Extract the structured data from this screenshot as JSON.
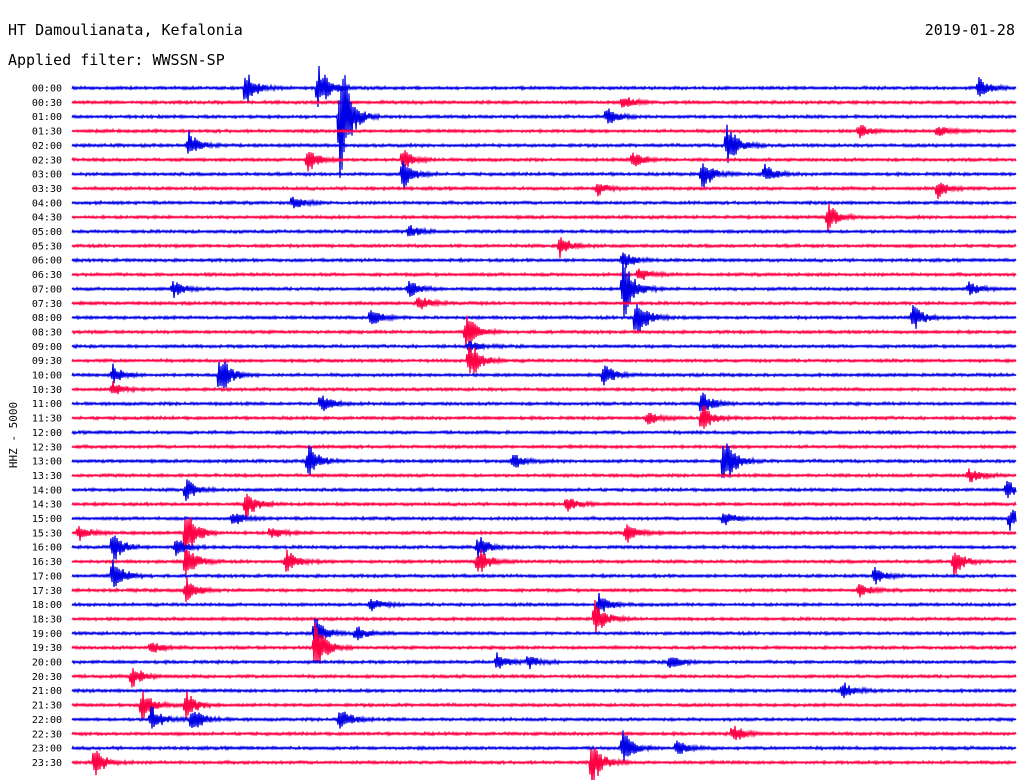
{
  "header": {
    "station": "HT Damoulianata, Kefalonia",
    "filter": "Applied filter: WWSSN-SP",
    "date": "2019-01-28"
  },
  "colors": {
    "trace_even": "#0000e6",
    "trace_odd": "#ff0044",
    "text": "#000000",
    "background": "#ffffff"
  },
  "chart_data": {
    "type": "helicorder",
    "channel_label": "HHZ - 5000",
    "line_interval_minutes": 30,
    "rows": [
      "00:00",
      "00:30",
      "01:00",
      "01:30",
      "02:00",
      "02:30",
      "03:00",
      "03:30",
      "04:00",
      "04:30",
      "05:00",
      "05:30",
      "06:00",
      "06:30",
      "07:00",
      "07:30",
      "08:00",
      "08:30",
      "09:00",
      "09:30",
      "10:00",
      "10:30",
      "11:00",
      "11:30",
      "12:00",
      "12:30",
      "13:00",
      "13:30",
      "14:00",
      "14:30",
      "15:00",
      "15:30",
      "16:00",
      "16:30",
      "17:00",
      "17:30",
      "18:00",
      "18:30",
      "19:00",
      "19:30",
      "20:00",
      "20:30",
      "21:00",
      "21:30",
      "22:00",
      "22:30",
      "23:00",
      "23:30"
    ],
    "events": [
      {
        "row": 0,
        "minute": 5.5,
        "amplitude": 1.6
      },
      {
        "row": 0,
        "minute": 7.8,
        "amplitude": 2.2
      },
      {
        "row": 0,
        "minute": 28.8,
        "amplitude": 0.9
      },
      {
        "row": 1,
        "minute": 17.5,
        "amplitude": 0.6
      },
      {
        "row": 2,
        "minute": 8.5,
        "amplitude": 6.0
      },
      {
        "row": 2,
        "minute": 17.0,
        "amplitude": 0.7
      },
      {
        "row": 3,
        "minute": 25.0,
        "amplitude": 0.6
      },
      {
        "row": 3,
        "minute": 27.5,
        "amplitude": 0.5
      },
      {
        "row": 4,
        "minute": 3.7,
        "amplitude": 1.2
      },
      {
        "row": 4,
        "minute": 20.8,
        "amplitude": 2.0
      },
      {
        "row": 5,
        "minute": 7.5,
        "amplitude": 1.0
      },
      {
        "row": 5,
        "minute": 10.5,
        "amplitude": 0.9
      },
      {
        "row": 5,
        "minute": 17.8,
        "amplitude": 0.8
      },
      {
        "row": 6,
        "minute": 10.5,
        "amplitude": 1.3
      },
      {
        "row": 6,
        "minute": 20.0,
        "amplitude": 1.5
      },
      {
        "row": 6,
        "minute": 22.0,
        "amplitude": 0.8
      },
      {
        "row": 7,
        "minute": 16.7,
        "amplitude": 0.6
      },
      {
        "row": 7,
        "minute": 27.5,
        "amplitude": 0.8
      },
      {
        "row": 8,
        "minute": 7.0,
        "amplitude": 0.6
      },
      {
        "row": 9,
        "minute": 24.0,
        "amplitude": 1.2
      },
      {
        "row": 10,
        "minute": 10.7,
        "amplitude": 0.6
      },
      {
        "row": 11,
        "minute": 15.5,
        "amplitude": 0.9
      },
      {
        "row": 12,
        "minute": 17.5,
        "amplitude": 0.8
      },
      {
        "row": 13,
        "minute": 18.0,
        "amplitude": 0.6
      },
      {
        "row": 14,
        "minute": 3.2,
        "amplitude": 0.8
      },
      {
        "row": 14,
        "minute": 10.7,
        "amplitude": 0.7
      },
      {
        "row": 14,
        "minute": 17.5,
        "amplitude": 3.0
      },
      {
        "row": 14,
        "minute": 28.5,
        "amplitude": 0.6
      },
      {
        "row": 15,
        "minute": 11.0,
        "amplitude": 0.7
      },
      {
        "row": 16,
        "minute": 9.5,
        "amplitude": 0.8
      },
      {
        "row": 16,
        "minute": 17.9,
        "amplitude": 2.0
      },
      {
        "row": 16,
        "minute": 26.7,
        "amplitude": 1.2
      },
      {
        "row": 17,
        "minute": 12.5,
        "amplitude": 1.6
      },
      {
        "row": 18,
        "minute": 12.6,
        "amplitude": 0.5
      },
      {
        "row": 19,
        "minute": 12.6,
        "amplitude": 2.0
      },
      {
        "row": 20,
        "minute": 1.3,
        "amplitude": 0.8
      },
      {
        "row": 20,
        "minute": 4.7,
        "amplitude": 1.8
      },
      {
        "row": 20,
        "minute": 16.9,
        "amplitude": 1.0
      },
      {
        "row": 21,
        "minute": 1.3,
        "amplitude": 0.6
      },
      {
        "row": 22,
        "minute": 7.9,
        "amplitude": 0.8
      },
      {
        "row": 22,
        "minute": 20.0,
        "amplitude": 1.2
      },
      {
        "row": 23,
        "minute": 18.3,
        "amplitude": 0.7
      },
      {
        "row": 23,
        "minute": 20.0,
        "amplitude": 1.3
      },
      {
        "row": 26,
        "minute": 7.5,
        "amplitude": 1.5
      },
      {
        "row": 26,
        "minute": 14.0,
        "amplitude": 0.7
      },
      {
        "row": 26,
        "minute": 20.7,
        "amplitude": 2.5
      },
      {
        "row": 27,
        "minute": 28.5,
        "amplitude": 0.7
      },
      {
        "row": 28,
        "minute": 3.6,
        "amplitude": 1.0
      },
      {
        "row": 28,
        "minute": 29.7,
        "amplitude": 0.8
      },
      {
        "row": 29,
        "minute": 5.5,
        "amplitude": 1.3
      },
      {
        "row": 29,
        "minute": 15.7,
        "amplitude": 0.6
      },
      {
        "row": 30,
        "minute": 5.1,
        "amplitude": 0.6
      },
      {
        "row": 30,
        "minute": 20.7,
        "amplitude": 0.6
      },
      {
        "row": 30,
        "minute": 29.8,
        "amplitude": 0.9
      },
      {
        "row": 31,
        "minute": 0.2,
        "amplitude": 0.8
      },
      {
        "row": 31,
        "minute": 3.6,
        "amplitude": 2.5
      },
      {
        "row": 31,
        "minute": 6.3,
        "amplitude": 0.6
      },
      {
        "row": 31,
        "minute": 17.6,
        "amplitude": 0.9
      },
      {
        "row": 32,
        "minute": 1.3,
        "amplitude": 1.2
      },
      {
        "row": 32,
        "minute": 3.3,
        "amplitude": 0.8
      },
      {
        "row": 32,
        "minute": 12.9,
        "amplitude": 1.0
      },
      {
        "row": 33,
        "minute": 3.6,
        "amplitude": 1.5
      },
      {
        "row": 33,
        "minute": 6.8,
        "amplitude": 1.0
      },
      {
        "row": 33,
        "minute": 12.9,
        "amplitude": 1.2
      },
      {
        "row": 33,
        "minute": 28.0,
        "amplitude": 1.2
      },
      {
        "row": 34,
        "minute": 1.3,
        "amplitude": 1.4
      },
      {
        "row": 34,
        "minute": 25.5,
        "amplitude": 0.7
      },
      {
        "row": 35,
        "minute": 3.6,
        "amplitude": 1.2
      },
      {
        "row": 35,
        "minute": 25.0,
        "amplitude": 0.6
      },
      {
        "row": 36,
        "minute": 9.5,
        "amplitude": 0.6
      },
      {
        "row": 36,
        "minute": 16.7,
        "amplitude": 1.0
      },
      {
        "row": 37,
        "minute": 16.6,
        "amplitude": 1.6
      },
      {
        "row": 38,
        "minute": 7.7,
        "amplitude": 1.5
      },
      {
        "row": 38,
        "minute": 9.0,
        "amplitude": 0.7
      },
      {
        "row": 39,
        "minute": 7.7,
        "amplitude": 2.5
      },
      {
        "row": 39,
        "minute": 2.5,
        "amplitude": 0.6
      },
      {
        "row": 40,
        "minute": 13.5,
        "amplitude": 0.7
      },
      {
        "row": 40,
        "minute": 14.5,
        "amplitude": 0.6
      },
      {
        "row": 40,
        "minute": 19.0,
        "amplitude": 0.6
      },
      {
        "row": 41,
        "minute": 1.9,
        "amplitude": 0.9
      },
      {
        "row": 42,
        "minute": 24.5,
        "amplitude": 0.7
      },
      {
        "row": 43,
        "minute": 2.2,
        "amplitude": 1.4
      },
      {
        "row": 43,
        "minute": 3.6,
        "amplitude": 1.2
      },
      {
        "row": 44,
        "minute": 2.5,
        "amplitude": 1.3
      },
      {
        "row": 44,
        "minute": 3.8,
        "amplitude": 1.2
      },
      {
        "row": 44,
        "minute": 8.5,
        "amplitude": 1.1
      },
      {
        "row": 45,
        "minute": 21.0,
        "amplitude": 0.8
      },
      {
        "row": 46,
        "minute": 17.5,
        "amplitude": 1.4
      },
      {
        "row": 46,
        "minute": 19.2,
        "amplitude": 0.7
      },
      {
        "row": 47,
        "minute": 0.7,
        "amplitude": 1.3
      },
      {
        "row": 47,
        "minute": 16.5,
        "amplitude": 2.0
      }
    ]
  }
}
